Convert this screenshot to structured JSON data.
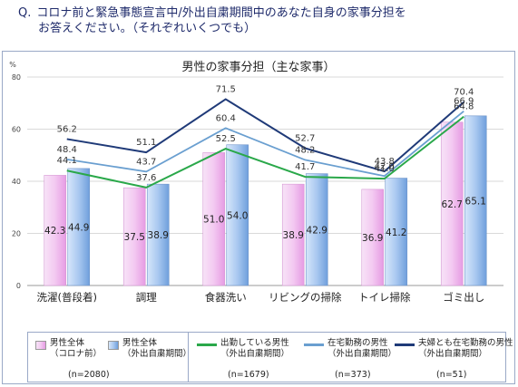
{
  "question": {
    "label": "Q.",
    "line1": "コロナ前と緊急事態宣言中/外出自粛期間中のあなた自身の家事分担を",
    "line2": "お答えください。（それぞれいくつでも）"
  },
  "colors": {
    "bar_precovid_fill": "#f3c9f1",
    "bar_stayhome_fill": "#a9c8f0",
    "line_commute": "#2aa84a",
    "line_remote": "#6a9fd0",
    "line_both_remote": "#1f3a78",
    "grid": "#d9d9d9"
  },
  "chart_data": {
    "type": "bar",
    "title": "男性の家事分担（主な家事）",
    "ylabel": "%",
    "ylim": [
      0,
      80
    ],
    "yticks": [
      "0",
      "20",
      "40",
      "60",
      "80"
    ],
    "categories": [
      "洗濯(普段着)",
      "調理",
      "食器洗い",
      "リビングの掃除",
      "トイレ掃除",
      "ゴミ出し"
    ],
    "bar_series": [
      {
        "name_line1": "男性全体",
        "name_line2": "（コロナ前）",
        "values": [
          42.3,
          37.5,
          51.0,
          38.9,
          36.9,
          62.7
        ]
      },
      {
        "name_line1": "男性全体",
        "name_line2": "（外出自粛期間）",
        "values": [
          44.9,
          38.9,
          54.0,
          42.9,
          41.2,
          65.1
        ]
      }
    ],
    "line_series": [
      {
        "name_line1": "出勤している男性",
        "name_line2": "（外出自粛期間）",
        "n": "(n=1679)",
        "values": [
          44.1,
          37.6,
          52.5,
          41.7,
          41.0,
          64.8
        ]
      },
      {
        "name_line1": "在宅勤務の男性",
        "name_line2": "（外出自粛期間）",
        "n": "(n=373)",
        "values": [
          48.4,
          43.7,
          60.4,
          48.2,
          42.0,
          66.9
        ]
      },
      {
        "name_line1": "夫婦とも在宅勤務の男性",
        "name_line2": "（外出自粛期間）",
        "n": "(n=51)",
        "values": [
          56.2,
          51.1,
          71.5,
          52.7,
          43.8,
          70.4
        ]
      }
    ],
    "bar_n": "(n=2080)",
    "bar_labels": {
      "s0": [
        "42.3",
        "37.5",
        "51.0",
        "38.9",
        "36.9",
        "62.7"
      ],
      "s1": [
        "44.9",
        "38.9",
        "54.0",
        "42.9",
        "41.2",
        "65.1"
      ]
    },
    "line_labels": {
      "s0": [
        "44.1",
        "37.6",
        "52.5",
        "41.7",
        "41.0",
        "64.8"
      ],
      "s1": [
        "48.4",
        "43.7",
        "60.4",
        "48.2",
        "42.0",
        "66.9"
      ],
      "s2": [
        "56.2",
        "51.1",
        "71.5",
        "52.7",
        "43.8",
        "70.4"
      ]
    },
    "grid": true,
    "legend_position": "bottom"
  }
}
